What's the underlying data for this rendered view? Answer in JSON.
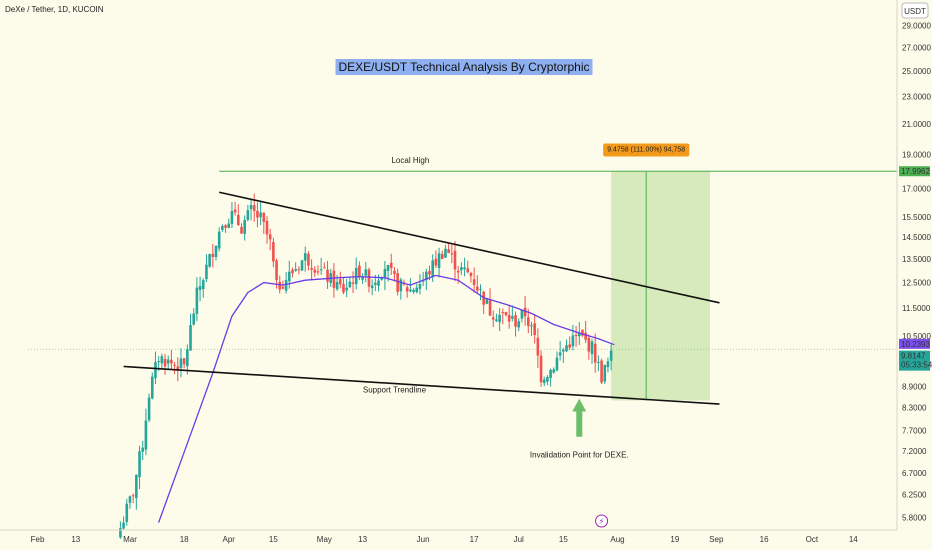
{
  "header": {
    "symbol": "DeXe / Tether, 1D, KUCOIN",
    "currency_button": "USDT"
  },
  "colors": {
    "background": "#fdfbe9",
    "up": "#26a69a",
    "down": "#ef5350",
    "ma": "#6a3de8",
    "local_high": "#4caf50",
    "zone_fill": "#c5e3a8",
    "arrow": "#6bbf6b",
    "price_tag": "#26a69a",
    "ma_tag": "#7b4ff0",
    "title_bg": "#8fb0f0",
    "measure_bg": "#f39a1c"
  },
  "chart_data": {
    "type": "candlestick",
    "title": "DEXE/USDT Technical Analysis By Cryptorphic",
    "y_axis": {
      "scale": "log",
      "range": [
        5.6,
        30.5
      ],
      "ticks": [
        "29.0000",
        "27.0000",
        "25.0000",
        "23.0000",
        "21.0000",
        "19.0000",
        "17.0000",
        "15.5000",
        "14.5000",
        "13.5000",
        "12.5000",
        "11.5000",
        "10.5000",
        "8.9000",
        "8.3000",
        "7.7000",
        "7.2000",
        "6.7000",
        "6.2500",
        "5.8000"
      ]
    },
    "x_axis": {
      "ticks": [
        "Feb",
        "13",
        "Mar",
        "18",
        "Apr",
        "15",
        "May",
        "13",
        "Jun",
        "17",
        "Jul",
        "15",
        "Aug",
        "19",
        "Sep",
        "16",
        "Oct",
        "14"
      ],
      "tick_dates": [
        "2024-02-01",
        "2024-02-13",
        "2024-03-01",
        "2024-03-18",
        "2024-04-01",
        "2024-04-15",
        "2024-05-01",
        "2024-05-13",
        "2024-06-01",
        "2024-06-17",
        "2024-07-01",
        "2024-07-15",
        "2024-08-01",
        "2024-08-19",
        "2024-09-01",
        "2024-09-16",
        "2024-10-01",
        "2024-10-14"
      ]
    },
    "close_path": [
      [
        "2024-02-27",
        5.6
      ],
      [
        "2024-03-02",
        6.3
      ],
      [
        "2024-03-05",
        7.4
      ],
      [
        "2024-03-07",
        8.7
      ],
      [
        "2024-03-10",
        9.8
      ],
      [
        "2024-03-14",
        9.6
      ],
      [
        "2024-03-18",
        9.5
      ],
      [
        "2024-03-22",
        12.0
      ],
      [
        "2024-03-26",
        13.5
      ],
      [
        "2024-03-30",
        15.2
      ],
      [
        "2024-04-02",
        15.6
      ],
      [
        "2024-04-05",
        15.0
      ],
      [
        "2024-04-08",
        15.8
      ],
      [
        "2024-04-11",
        15.4
      ],
      [
        "2024-04-14",
        14.2
      ],
      [
        "2024-04-16",
        12.3
      ],
      [
        "2024-04-20",
        12.8
      ],
      [
        "2024-04-25",
        13.6
      ],
      [
        "2024-04-29",
        13.1
      ],
      [
        "2024-05-03",
        12.6
      ],
      [
        "2024-05-07",
        12.2
      ],
      [
        "2024-05-12",
        13.0
      ],
      [
        "2024-05-16",
        12.5
      ],
      [
        "2024-05-20",
        13.2
      ],
      [
        "2024-05-24",
        12.4
      ],
      [
        "2024-05-28",
        12.2
      ],
      [
        "2024-06-01",
        12.6
      ],
      [
        "2024-06-05",
        13.4
      ],
      [
        "2024-06-08",
        14.0
      ],
      [
        "2024-06-12",
        13.1
      ],
      [
        "2024-06-16",
        12.8
      ],
      [
        "2024-06-19",
        12.1
      ],
      [
        "2024-06-22",
        11.4
      ],
      [
        "2024-06-26",
        11.2
      ],
      [
        "2024-06-30",
        11.0
      ],
      [
        "2024-07-03",
        11.3
      ],
      [
        "2024-07-06",
        10.4
      ],
      [
        "2024-07-08",
        9.2
      ],
      [
        "2024-07-11",
        9.4
      ],
      [
        "2024-07-14",
        9.9
      ],
      [
        "2024-07-17",
        10.3
      ],
      [
        "2024-07-20",
        10.5
      ],
      [
        "2024-07-24",
        10.1
      ],
      [
        "2024-07-27",
        9.2
      ],
      [
        "2024-07-30",
        9.81
      ]
    ],
    "moving_average": [
      [
        "2024-03-10",
        5.7
      ],
      [
        "2024-03-20",
        7.6
      ],
      [
        "2024-03-27",
        9.3
      ],
      [
        "2024-04-02",
        11.2
      ],
      [
        "2024-04-07",
        12.1
      ],
      [
        "2024-04-12",
        12.5
      ],
      [
        "2024-04-18",
        12.4
      ],
      [
        "2024-04-25",
        12.6
      ],
      [
        "2024-05-05",
        12.7
      ],
      [
        "2024-05-12",
        12.75
      ],
      [
        "2024-05-20",
        12.7
      ],
      [
        "2024-05-28",
        12.4
      ],
      [
        "2024-06-05",
        12.8
      ],
      [
        "2024-06-12",
        12.6
      ],
      [
        "2024-06-20",
        11.9
      ],
      [
        "2024-06-28",
        11.6
      ],
      [
        "2024-07-05",
        11.3
      ],
      [
        "2024-07-12",
        10.9
      ],
      [
        "2024-07-20",
        10.6
      ],
      [
        "2024-07-26",
        10.4
      ],
      [
        "2024-07-31",
        10.2
      ]
    ],
    "annotations": {
      "local_high": {
        "label": "Local High",
        "value": 17.9962,
        "tag": "17.9962"
      },
      "resistance_line": {
        "points": [
          [
            "2024-03-29",
            16.8
          ],
          [
            "2024-09-02",
            11.7
          ]
        ]
      },
      "support_line": {
        "label": "Support Trendline",
        "points": [
          [
            "2024-02-28",
            9.5
          ],
          [
            "2024-09-02",
            8.4
          ]
        ]
      },
      "target_zone": {
        "from": "2024-07-30",
        "to": "2024-08-30",
        "low": 8.5,
        "high": 17.9962,
        "midline_date": "2024-08-10"
      },
      "measure_label": "9.4758 (111.00%) 94,758",
      "arrow": {
        "date": "2024-07-20",
        "label": "Invalidation Point for DEXE."
      },
      "lightning": "⚡"
    },
    "last_price": {
      "value": "9.8147",
      "countdown": "05:33:54"
    },
    "ma_value": "10.2393",
    "grid": false
  }
}
